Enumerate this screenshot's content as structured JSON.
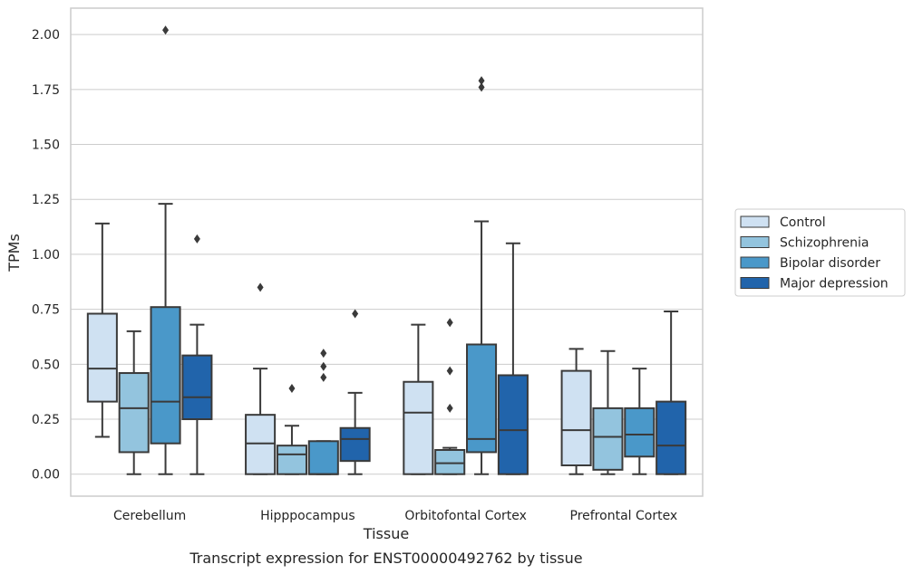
{
  "chart_data": {
    "type": "box",
    "title": "",
    "caption": "Transcript expression for ENST00000492762 by tissue",
    "xlabel": "Tissue",
    "ylabel": "TPMs",
    "ylim": [
      -0.1,
      2.12
    ],
    "yticks": [
      0.0,
      0.25,
      0.5,
      0.75,
      1.0,
      1.25,
      1.5,
      1.75,
      2.0
    ],
    "ytick_labels": [
      "0.00",
      "0.25",
      "0.50",
      "0.75",
      "1.00",
      "1.25",
      "1.50",
      "1.75",
      "2.00"
    ],
    "grid": true,
    "legend_placement": "right",
    "categories": [
      "Cerebellum",
      "Hipppocampus",
      "Orbitofontal Cortex",
      "Prefrontal Cortex"
    ],
    "series": [
      {
        "name": "Control",
        "color": "#cfe1f2",
        "boxes": [
          {
            "whisker_low": 0.17,
            "q1": 0.33,
            "median": 0.48,
            "q3": 0.73,
            "whisker_high": 1.14,
            "outliers": []
          },
          {
            "whisker_low": 0.0,
            "q1": 0.0,
            "median": 0.14,
            "q3": 0.27,
            "whisker_high": 0.48,
            "outliers": [
              0.85
            ]
          },
          {
            "whisker_low": 0.0,
            "q1": 0.0,
            "median": 0.28,
            "q3": 0.42,
            "whisker_high": 0.68,
            "outliers": []
          },
          {
            "whisker_low": 0.0,
            "q1": 0.04,
            "median": 0.2,
            "q3": 0.47,
            "whisker_high": 0.57,
            "outliers": []
          }
        ]
      },
      {
        "name": "Schizophrenia",
        "color": "#93c4de",
        "boxes": [
          {
            "whisker_low": 0.0,
            "q1": 0.1,
            "median": 0.3,
            "q3": 0.46,
            "whisker_high": 0.65,
            "outliers": []
          },
          {
            "whisker_low": 0.0,
            "q1": 0.0,
            "median": 0.09,
            "q3": 0.13,
            "whisker_high": 0.22,
            "outliers": [
              0.39
            ]
          },
          {
            "whisker_low": 0.0,
            "q1": 0.0,
            "median": 0.05,
            "q3": 0.11,
            "whisker_high": 0.12,
            "outliers": [
              0.3,
              0.47,
              0.69
            ]
          },
          {
            "whisker_low": 0.0,
            "q1": 0.02,
            "median": 0.17,
            "q3": 0.3,
            "whisker_high": 0.56,
            "outliers": []
          }
        ]
      },
      {
        "name": "Bipolar disorder",
        "color": "#4a98c9",
        "boxes": [
          {
            "whisker_low": 0.0,
            "q1": 0.14,
            "median": 0.33,
            "q3": 0.76,
            "whisker_high": 1.23,
            "outliers": [
              2.02
            ]
          },
          {
            "whisker_low": 0.0,
            "q1": 0.0,
            "median": 0.0,
            "q3": 0.15,
            "whisker_high": 0.15,
            "outliers": [
              0.44,
              0.49,
              0.55
            ]
          },
          {
            "whisker_low": 0.0,
            "q1": 0.1,
            "median": 0.16,
            "q3": 0.59,
            "whisker_high": 1.15,
            "outliers": [
              1.76,
              1.79
            ]
          },
          {
            "whisker_low": 0.0,
            "q1": 0.08,
            "median": 0.18,
            "q3": 0.3,
            "whisker_high": 0.48,
            "outliers": []
          }
        ]
      },
      {
        "name": "Major depression",
        "color": "#2164ab",
        "boxes": [
          {
            "whisker_low": 0.0,
            "q1": 0.25,
            "median": 0.35,
            "q3": 0.54,
            "whisker_high": 0.68,
            "outliers": [
              1.07
            ]
          },
          {
            "whisker_low": 0.0,
            "q1": 0.06,
            "median": 0.16,
            "q3": 0.21,
            "whisker_high": 0.37,
            "outliers": [
              0.73
            ]
          },
          {
            "whisker_low": 0.0,
            "q1": 0.0,
            "median": 0.2,
            "q3": 0.45,
            "whisker_high": 1.05,
            "outliers": []
          },
          {
            "whisker_low": 0.0,
            "q1": 0.0,
            "median": 0.13,
            "q3": 0.33,
            "whisker_high": 0.74,
            "outliers": []
          }
        ]
      }
    ]
  }
}
